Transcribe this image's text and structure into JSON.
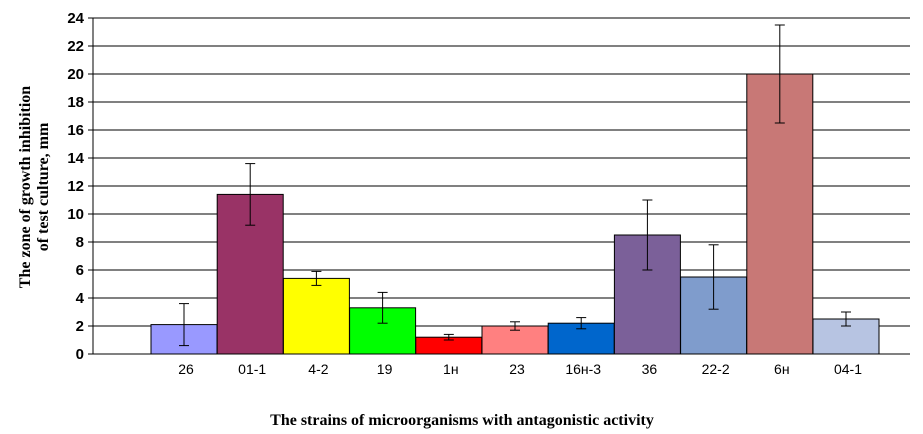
{
  "chart_data": {
    "type": "bar",
    "xlabel": "The strains of microorganisms with antagonistic activity",
    "ylabel": "The zone of growth inhibition of test culture, mm",
    "ylabel_lines": [
      "The zone of growth inhibition",
      "of test culture, mm"
    ],
    "ylim": [
      0,
      24
    ],
    "yticks": [
      0,
      2,
      4,
      6,
      8,
      10,
      12,
      14,
      16,
      18,
      20,
      22,
      24
    ],
    "grid": true,
    "categories": [
      "26",
      "01-1",
      "4-2",
      "19",
      "1н",
      "23",
      "16н-3",
      "36",
      "22-2",
      "6н",
      "04-1"
    ],
    "values": [
      2.1,
      11.4,
      5.4,
      3.3,
      1.2,
      2.0,
      2.2,
      8.5,
      5.5,
      20.0,
      2.5
    ],
    "error": [
      1.5,
      2.2,
      0.5,
      1.1,
      0.2,
      0.3,
      0.4,
      2.5,
      2.3,
      3.5,
      0.5
    ],
    "colors": [
      "#9999ff",
      "#993366",
      "#ffff00",
      "#00ff00",
      "#ff0000",
      "#ff8080",
      "#0066cc",
      "#7b6099",
      "#7f9ccc",
      "#c87876",
      "#b7c4e2"
    ]
  }
}
